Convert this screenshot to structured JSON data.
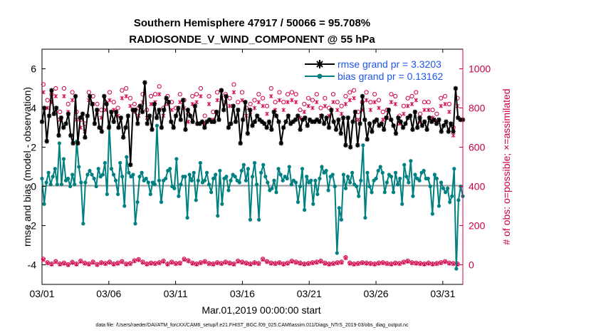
{
  "chart_data": {
    "type": "line",
    "title_line1": "Southern Hemisphere 47917 / 50066 = 95.708%",
    "title_line2": "RADIOSONDE_V_WIND_COMPONENT @ 55 hPa",
    "xlabel": "Mar.01,2019 00:00:00 start",
    "ylabel_left": "rmse and bias (model - observation)",
    "ylabel_right": "# of obs: o=possible; ×=assimilated",
    "footnote": "data file: /Users/raeder/DAI/ATM_forcXX/CAM6_setup/f.e21.FHIST_BGC.f09_025.CAM6assim.011/Diags_NTrS_2019-03/obs_diag_output.nc",
    "x_tick_labels": [
      "03/01",
      "03/06",
      "03/11",
      "03/16",
      "03/21",
      "03/26",
      "03/31"
    ],
    "x_tick_days": [
      0,
      5,
      10,
      15,
      20,
      25,
      30
    ],
    "xlim": [
      0,
      31.5
    ],
    "ylim_left": [
      -5,
      7
    ],
    "ylim_right": [
      -100,
      1100
    ],
    "y_ticks_left": [
      -4,
      -2,
      0,
      2,
      4,
      6
    ],
    "y_ticks_right": [
      0,
      200,
      400,
      600,
      800,
      1000
    ],
    "legend": {
      "rmse_label": "rmse grand pr = 3.3203",
      "bias_label": "bias grand pr = 0.13162"
    },
    "colors": {
      "rmse": "#000000",
      "bias": "#008080",
      "obs": "#d3004c",
      "zero_line": "#999999",
      "legend_text": "#1f55e8"
    },
    "series": [
      {
        "name": "rmse",
        "values": [
          3.3,
          4.0,
          2.3,
          3.6,
          4.9,
          3.7,
          4.0,
          2.6,
          3.5,
          3.0,
          3.2,
          3.7,
          2.6,
          2.2,
          4.6,
          2.2,
          3.5,
          3.7,
          2.5,
          3.6,
          4.6,
          4.2,
          3.2,
          3.9,
          3.0,
          2.8,
          4.6,
          4.2,
          3.0,
          3.8,
          3.3,
          3.8,
          3.0,
          3.5,
          2.5,
          3.0,
          3.6,
          1.1,
          3.9,
          3.9,
          3.2,
          4.1,
          3.8,
          5.3,
          3.2,
          3.6,
          2.9,
          4.2,
          3.5,
          3.9,
          3.0,
          3.9,
          4.5,
          4.3,
          3.3,
          3.0,
          3.6,
          4.0,
          3.4,
          4.4,
          2.9,
          3.9,
          3.6,
          3.3,
          4.1,
          3.2,
          3.2,
          3.3,
          3.0,
          3.3,
          3.4,
          3.3,
          3.3,
          3.8,
          3.4,
          4.9,
          3.9,
          4.6,
          3.0,
          3.2,
          4.1,
          3.3,
          3.9,
          2.2,
          3.4,
          4.3,
          2.7,
          3.9,
          3.1,
          3.3,
          3.6,
          3.4,
          3.3,
          3.2,
          3.0,
          3.3,
          2.9,
          3.8,
          3.6,
          3.3,
          2.2,
          3.0,
          3.3,
          3.6,
          3.2,
          3.3,
          3.4,
          3.6,
          2.9,
          3.4,
          3.5,
          3.1,
          3.4,
          3.3,
          3.3,
          3.4,
          3.3,
          3.6,
          3.2,
          3.5,
          3.0,
          3.9,
          3.3,
          2.9,
          3.4,
          2.7,
          3.5,
          2.1,
          3.5,
          2.0,
          3.3,
          3.8,
          2.1,
          3.2,
          4.6,
          3.4,
          2.4,
          3.2,
          2.8,
          3.3,
          3.4,
          3.1,
          3.2,
          2.9,
          3.5,
          3.9,
          3.4,
          3.1,
          2.7,
          3.5,
          3.3,
          3.0,
          3.2,
          3.5,
          3.6,
          2.9,
          3.8,
          3.0,
          3.5,
          3.1,
          3.3,
          2.9,
          3.5,
          3.3,
          3.4,
          3.2,
          3.4,
          2.8,
          3.1,
          3.3,
          2.8,
          3.2,
          2.8,
          5.0,
          3.5,
          3.4,
          3.4
        ]
      },
      {
        "name": "bias",
        "values": [
          0.4,
          -0.9,
          0.2,
          0.7,
          0.1,
          0.5,
          0.9,
          0.1,
          2.2,
          0.1,
          1.4,
          0.3,
          0.4,
          0.0,
          0.6,
          0.1,
          2.3,
          1.0,
          0.2,
          -1.9,
          0.2,
          0.6,
          0.8,
          0.6,
          0.4,
          0.0,
          0.9,
          0.5,
          0.6,
          1.2,
          -0.4,
          3.1,
          0.9,
          0.6,
          0.3,
          -0.4,
          1.2,
          0.5,
          -1.0,
          1.5,
          0.7,
          0.5,
          0.6,
          -1.9,
          -0.8,
          0.5,
          0.7,
          0.3,
          0.4,
          0.2,
          -0.4,
          0.2,
          0.1,
          3.1,
          0.3,
          -0.8,
          0.3,
          0.4,
          0.8,
          0.9,
          0.0,
          -0.1,
          1.4,
          -0.5,
          0.1,
          0.5,
          0.5,
          -1.6,
          0.6,
          0.3,
          0.7,
          -0.7,
          0.3,
          1.2,
          0.2,
          0.3,
          0.7,
          0.1,
          -0.3,
          0.4,
          0.6,
          -1.5,
          0.8,
          -0.9,
          0.4,
          0.5,
          -0.2,
          0.3,
          0.6,
          0.5,
          0.3,
          0.2,
          0.8,
          1.1,
          0.3,
          0.9,
          -1.7,
          0.5,
          1.2,
          0.1,
          -1.7,
          0.7,
          1.1,
          0.5,
          0.2,
          -0.2,
          -0.1,
          0.3,
          -0.3,
          0.9,
          0.6,
          0.3,
          0.5,
          0.4,
          1.0,
          0.1,
          0.3,
          0.2,
          -0.8,
          0.0,
          0.9,
          -1.2,
          0.5,
          0.2,
          0.3,
          -0.9,
          0.3,
          -0.4,
          0.4,
          1.0,
          0.7,
          0.8,
          -0.2,
          0.5,
          0.6,
          0.0,
          -3.4,
          -1.1,
          -1.7,
          0.6,
          -0.1,
          0.5,
          0.2,
          0.7,
          0.1,
          0.0,
          -0.5,
          0.3,
          2.1,
          -1.6,
          0.7,
          0.0,
          -0.3,
          0.3,
          0.4,
          0.8,
          1.0,
          0.7,
          -0.3,
          0.2,
          0.6,
          0.5,
          -0.3,
          0.7,
          0.1,
          0.4,
          -0.9,
          1.1,
          0.5,
          0.2,
          1.3,
          -0.5,
          0.6,
          0.4,
          0.3,
          0.7,
          0.8,
          0.4,
          0.4,
          0.0,
          -1.4,
          0.6,
          0.4,
          -1.0,
          0.2,
          -0.1,
          -0.3,
          -0.1,
          -0.8,
          -0.5,
          0.9,
          -4.2,
          -0.7,
          0.0,
          -0.5
        ]
      },
      {
        "name": "obs_possible_high",
        "values": [
          920,
          840,
          870,
          900,
          780,
          900,
          820,
          880,
          780,
          740,
          720,
          880,
          860,
          820,
          790,
          830,
          880,
          830,
          800,
          890,
          900,
          850,
          820,
          800,
          870,
          790,
          860,
          870,
          910,
          800,
          860,
          830,
          800,
          870,
          840,
          770,
          860,
          870,
          900,
          760,
          860,
          780,
          880,
          890,
          870,
          850,
          920,
          830,
          880,
          800,
          820,
          840,
          870,
          850,
          810,
          900,
          830,
          880,
          830,
          870,
          880,
          870,
          790,
          820,
          850,
          840,
          870,
          800,
          850,
          800,
          870,
          830,
          810,
          860,
          880,
          890,
          780,
          830,
          880,
          830,
          870,
          840,
          780,
          790,
          870,
          860,
          760,
          810,
          850,
          860,
          880,
          770,
          830,
          830,
          790,
          770,
          850,
          860,
          820,
          700,
          850
        ]
      },
      {
        "name": "obs_assimilated_high",
        "values": [
          880,
          800,
          830,
          860,
          740,
          860,
          780,
          840,
          740,
          700,
          680,
          840,
          820,
          780,
          750,
          790,
          840,
          790,
          760,
          850,
          860,
          810,
          780,
          760,
          830,
          750,
          820,
          830,
          870,
          760,
          820,
          790,
          760,
          830,
          800,
          730,
          820,
          830,
          860,
          720,
          820,
          740,
          840,
          850,
          830,
          810,
          880,
          790,
          840,
          760,
          780,
          800,
          830,
          810,
          770,
          860,
          790,
          840,
          790,
          830,
          840,
          830,
          750,
          780,
          810,
          800,
          830,
          760,
          810,
          760,
          830,
          790,
          770,
          820,
          840,
          850,
          740,
          790,
          840,
          790,
          830,
          800,
          740,
          750,
          830,
          820,
          720,
          770,
          810,
          820,
          840,
          730,
          790,
          790,
          750,
          730,
          810,
          820,
          780,
          660,
          810
        ]
      },
      {
        "name": "obs_possible_low",
        "values": [
          30,
          12,
          5,
          18,
          5,
          10,
          2,
          14,
          5,
          20,
          10,
          5,
          15,
          3,
          12,
          8,
          15,
          5,
          10,
          18,
          5,
          8,
          22,
          28,
          15,
          5,
          10,
          8,
          12,
          20,
          5,
          15,
          8,
          10,
          30,
          22,
          10,
          5,
          12,
          18,
          8,
          5,
          12,
          8,
          15,
          10,
          5,
          20,
          15,
          10,
          5,
          12,
          8,
          30,
          18,
          10,
          8,
          12,
          5,
          10,
          20,
          15,
          10,
          5,
          8,
          12,
          15,
          20,
          10,
          5,
          8,
          12,
          15,
          38,
          10,
          5,
          8,
          12,
          10,
          8,
          5,
          10,
          12,
          8,
          5,
          10,
          8,
          15,
          20,
          12,
          10,
          8,
          5,
          10,
          5,
          8,
          12,
          18,
          10,
          8,
          5
        ]
      },
      {
        "name": "obs_assimilated_low",
        "values": [
          25,
          8,
          2,
          14,
          2,
          6,
          -2,
          10,
          2,
          16,
          6,
          2,
          11,
          -1,
          8,
          4,
          11,
          2,
          6,
          14,
          2,
          4,
          18,
          24,
          11,
          2,
          6,
          4,
          8,
          16,
          2,
          11,
          4,
          6,
          26,
          18,
          6,
          2,
          8,
          14,
          4,
          2,
          8,
          4,
          11,
          6,
          2,
          16,
          11,
          6,
          2,
          8,
          4,
          26,
          14,
          6,
          4,
          8,
          2,
          6,
          16,
          11,
          6,
          2,
          4,
          8,
          11,
          16,
          6,
          2,
          4,
          8,
          11,
          34,
          6,
          2,
          4,
          8,
          6,
          4,
          2,
          6,
          8,
          4,
          2,
          6,
          4,
          11,
          16,
          8,
          6,
          4,
          2,
          6,
          2,
          4,
          8,
          14,
          6,
          4,
          2
        ]
      }
    ]
  }
}
